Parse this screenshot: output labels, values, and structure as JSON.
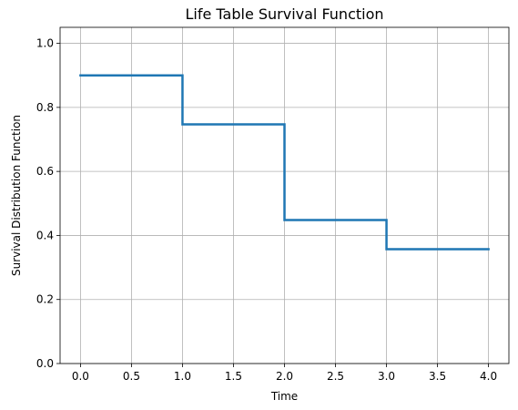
{
  "chart_data": {
    "type": "line",
    "drawstyle": "steps-post",
    "title": "Life Table Survival Function",
    "xlabel": "Time",
    "ylabel": "Survival Distribution Function",
    "xlim": [
      -0.2,
      4.2
    ],
    "ylim": [
      0.0,
      1.05
    ],
    "xticks": [
      0.0,
      0.5,
      1.0,
      1.5,
      2.0,
      2.5,
      3.0,
      3.5,
      4.0
    ],
    "yticks": [
      0.0,
      0.2,
      0.4,
      0.6,
      0.8,
      1.0
    ],
    "xtick_labels": [
      "0.0",
      "0.5",
      "1.0",
      "1.5",
      "2.0",
      "2.5",
      "3.0",
      "3.5",
      "4.0"
    ],
    "ytick_labels": [
      "0.0",
      "0.2",
      "0.4",
      "0.6",
      "0.8",
      "1.0"
    ],
    "grid": true,
    "series": [
      {
        "x": [
          0.0,
          1.0,
          2.0,
          3.0,
          4.0
        ],
        "y": [
          0.9,
          0.747,
          0.448,
          0.357,
          0.357
        ],
        "color": "#1f77b4"
      }
    ]
  }
}
